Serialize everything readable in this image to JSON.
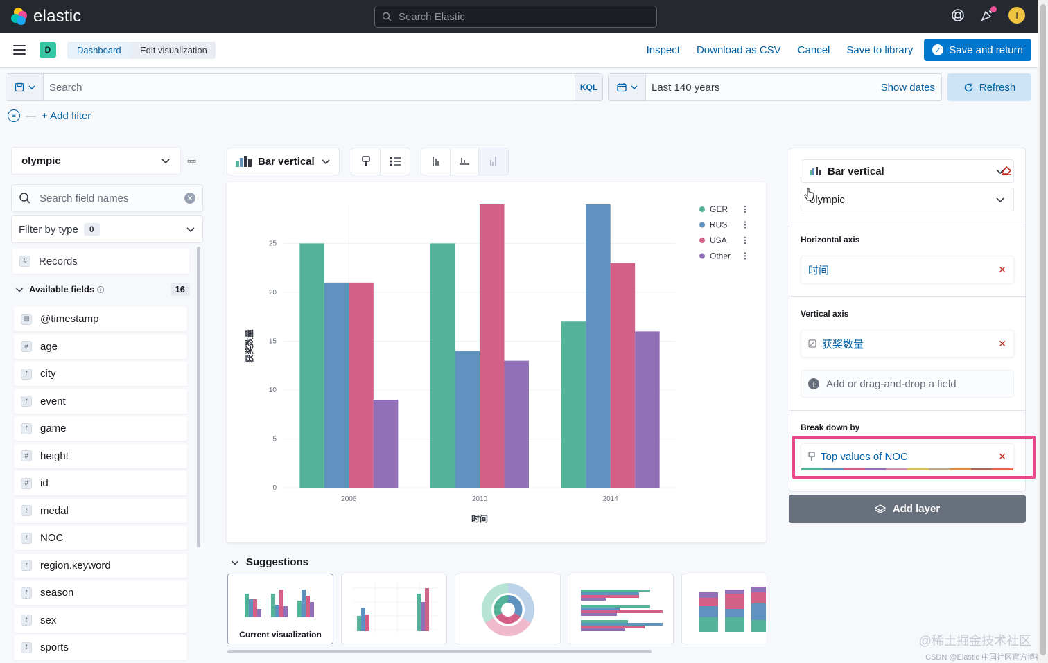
{
  "header": {
    "brand": "elastic",
    "search_placeholder": "Search Elastic",
    "avatar_initial": "I"
  },
  "subbar": {
    "space_initial": "D",
    "breadcrumbs": [
      "Dashboard",
      "Edit visualization"
    ],
    "actions": {
      "inspect": "Inspect",
      "download": "Download as CSV",
      "cancel": "Cancel",
      "save_library": "Save to library",
      "save_return": "Save and return"
    }
  },
  "query": {
    "placeholder": "Search",
    "language": "KQL",
    "date_range": "Last 140 years",
    "show_dates": "Show dates",
    "refresh": "Refresh",
    "add_filter": "+ Add filter"
  },
  "fields_panel": {
    "index_pattern": "olympic",
    "search_placeholder": "Search field names",
    "filter_by_type": "Filter by type",
    "filter_count": "0",
    "records_label": "Records",
    "available_label": "Available fields",
    "available_count": "16",
    "fields": [
      {
        "name": "@timestamp",
        "type": "date"
      },
      {
        "name": "age",
        "type": "number"
      },
      {
        "name": "city",
        "type": "string"
      },
      {
        "name": "event",
        "type": "string"
      },
      {
        "name": "game",
        "type": "string"
      },
      {
        "name": "height",
        "type": "number"
      },
      {
        "name": "id",
        "type": "number"
      },
      {
        "name": "medal",
        "type": "string"
      },
      {
        "name": "NOC",
        "type": "string"
      },
      {
        "name": "region.keyword",
        "type": "string"
      },
      {
        "name": "season",
        "type": "string"
      },
      {
        "name": "sex",
        "type": "string"
      },
      {
        "name": "sports",
        "type": "string"
      }
    ]
  },
  "workspace": {
    "chart_type_label": "Bar vertical",
    "suggestions_title": "Suggestions",
    "current_viz_label": "Current visualization"
  },
  "chart_data": {
    "type": "bar",
    "categories": [
      "2006",
      "2010",
      "2014"
    ],
    "series": [
      {
        "name": "GER",
        "values": [
          25,
          25,
          17
        ],
        "color": "#54b399"
      },
      {
        "name": "RUS",
        "values": [
          21,
          14,
          29
        ],
        "color": "#6092c0"
      },
      {
        "name": "USA",
        "values": [
          21,
          29,
          23
        ],
        "color": "#d36086"
      },
      {
        "name": "Other",
        "values": [
          9,
          13,
          16
        ],
        "color": "#9170b8"
      }
    ],
    "xlabel": "时间",
    "ylabel": "获奖数量",
    "ylim": [
      0,
      29
    ],
    "yticks": [
      0,
      5,
      10,
      15,
      20,
      25
    ],
    "grid": true,
    "legend_position": "top-right"
  },
  "config_panel": {
    "chart_type": "Bar vertical",
    "data_view": "olympic",
    "horizontal_axis_title": "Horizontal axis",
    "horizontal_axis_field": "时间",
    "vertical_axis_title": "Vertical axis",
    "vertical_axis_field": "获奖数量",
    "add_field": "Add or drag-and-drop a field",
    "breakdown_title": "Break down by",
    "breakdown_field": "Top values of NOC",
    "add_layer": "Add layer",
    "palette": [
      "#54b399",
      "#6092c0",
      "#d36086",
      "#9170b8",
      "#ca8eae",
      "#d6bf57",
      "#b9a888",
      "#da8b45",
      "#aa6556",
      "#e7664c"
    ]
  },
  "watermark": {
    "line1": "@稀土掘金技术社区",
    "line2": "CSDN @Elastic 中国社区官方博客"
  }
}
